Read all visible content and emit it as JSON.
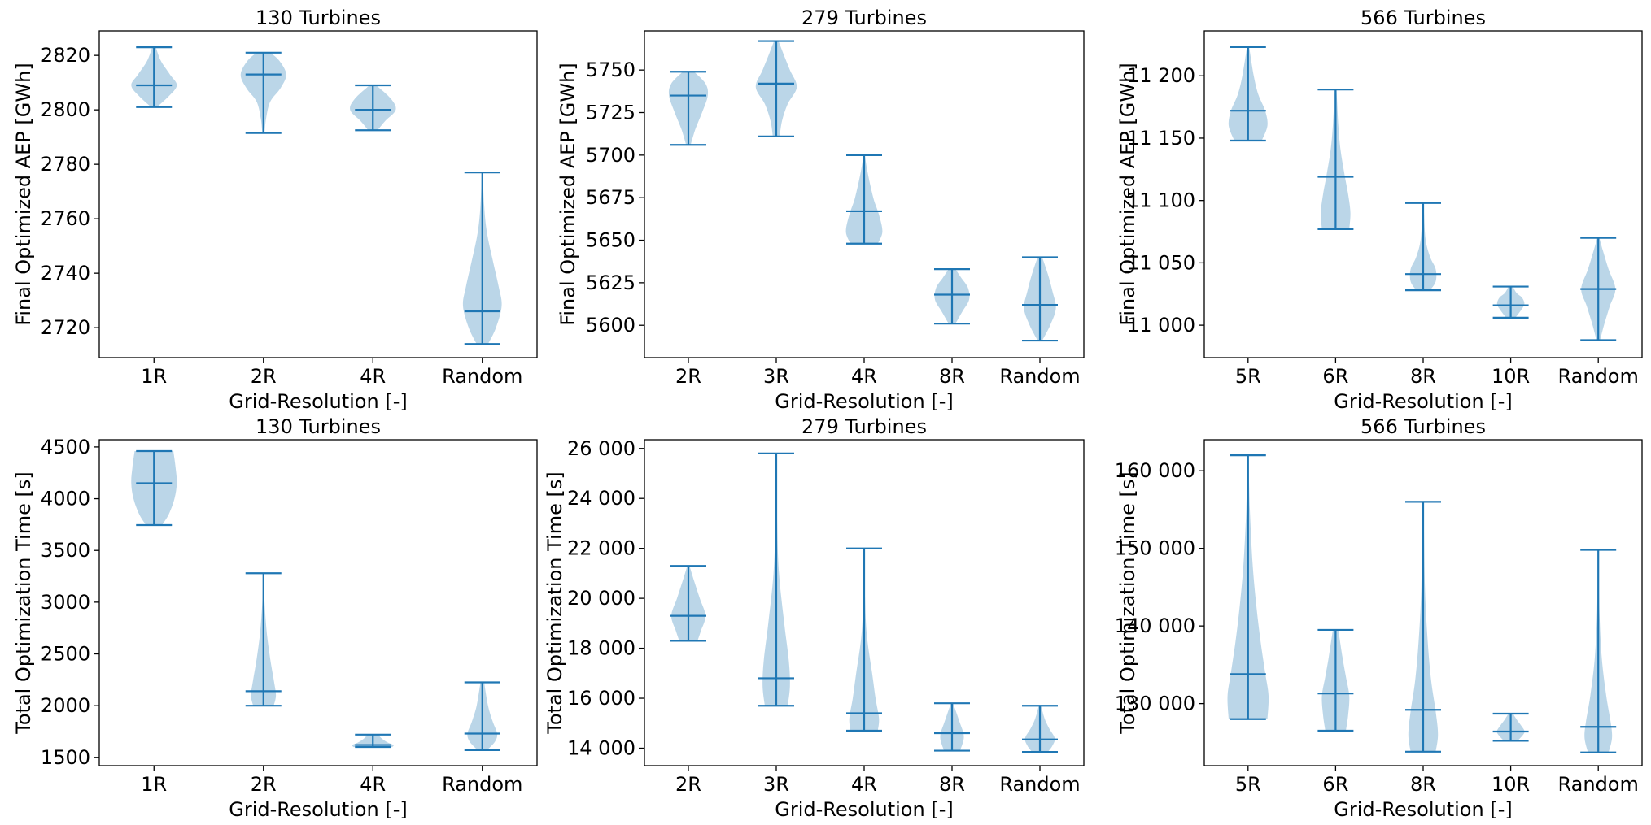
{
  "chart_data": [
    {
      "type": "violin",
      "title": "130 Turbines",
      "xlabel": "Grid-Resolution [-]",
      "ylabel": "Final Optimized AEP [GWh]",
      "categories": [
        "1R",
        "2R",
        "4R",
        "Random"
      ],
      "ylim": [
        2709,
        2829
      ],
      "yticks": [
        2720,
        2740,
        2760,
        2780,
        2800,
        2820
      ],
      "ytick_labels": [
        "2720",
        "2740",
        "2760",
        "2780",
        "2800",
        "2820"
      ],
      "violins": [
        {
          "min": 2801,
          "max": 2823,
          "median": 2809,
          "profile": [
            [
              2801,
              0.12
            ],
            [
              2805,
              0.65
            ],
            [
              2809,
              1.0
            ],
            [
              2813,
              0.7
            ],
            [
              2818,
              0.3
            ],
            [
              2823,
              0.08
            ]
          ]
        },
        {
          "min": 2791.5,
          "max": 2821,
          "median": 2813,
          "profile": [
            [
              2791.5,
              0.05
            ],
            [
              2797,
              0.12
            ],
            [
              2803,
              0.3
            ],
            [
              2808,
              0.75
            ],
            [
              2813,
              1.0
            ],
            [
              2818,
              0.7
            ],
            [
              2821,
              0.3
            ]
          ]
        },
        {
          "min": 2792.5,
          "max": 2809,
          "median": 2800,
          "profile": [
            [
              2792.5,
              0.2
            ],
            [
              2796,
              0.55
            ],
            [
              2800,
              1.0
            ],
            [
              2804,
              0.8
            ],
            [
              2809,
              0.15
            ]
          ]
        },
        {
          "min": 2714,
          "max": 2777,
          "median": 2726,
          "profile": [
            [
              2714,
              0.25
            ],
            [
              2720,
              0.6
            ],
            [
              2728,
              0.85
            ],
            [
              2735,
              0.72
            ],
            [
              2745,
              0.45
            ],
            [
              2755,
              0.2
            ],
            [
              2765,
              0.08
            ],
            [
              2777,
              0.02
            ]
          ]
        }
      ]
    },
    {
      "type": "violin",
      "title": "279 Turbines",
      "xlabel": "Grid-Resolution [-]",
      "ylabel": "Final Optimized AEP [GWh]",
      "categories": [
        "2R",
        "3R",
        "4R",
        "8R",
        "Random"
      ],
      "ylim": [
        5581,
        5773
      ],
      "yticks": [
        5600,
        5625,
        5650,
        5675,
        5700,
        5725,
        5750
      ],
      "ytick_labels": [
        "5600",
        "5625",
        "5650",
        "5675",
        "5700",
        "5725",
        "5750"
      ],
      "violins": [
        {
          "min": 5706,
          "max": 5749,
          "median": 5735,
          "profile": [
            [
              5706,
              0.1
            ],
            [
              5715,
              0.3
            ],
            [
              5725,
              0.6
            ],
            [
              5735,
              0.85
            ],
            [
              5742,
              0.75
            ],
            [
              5749,
              0.25
            ]
          ]
        },
        {
          "min": 5711,
          "max": 5767,
          "median": 5742,
          "profile": [
            [
              5711,
              0.15
            ],
            [
              5720,
              0.25
            ],
            [
              5730,
              0.5
            ],
            [
              5740,
              0.9
            ],
            [
              5750,
              0.6
            ],
            [
              5760,
              0.3
            ],
            [
              5767,
              0.1
            ]
          ]
        },
        {
          "min": 5648,
          "max": 5700,
          "median": 5667,
          "profile": [
            [
              5648,
              0.6
            ],
            [
              5655,
              0.8
            ],
            [
              5665,
              0.65
            ],
            [
              5675,
              0.4
            ],
            [
              5690,
              0.15
            ],
            [
              5700,
              0.03
            ]
          ]
        },
        {
          "min": 5601,
          "max": 5633,
          "median": 5618,
          "profile": [
            [
              5601,
              0.15
            ],
            [
              5608,
              0.45
            ],
            [
              5615,
              0.75
            ],
            [
              5622,
              0.7
            ],
            [
              5628,
              0.4
            ],
            [
              5633,
              0.15
            ]
          ]
        },
        {
          "min": 5591,
          "max": 5640,
          "median": 5612,
          "profile": [
            [
              5591,
              0.1
            ],
            [
              5600,
              0.45
            ],
            [
              5610,
              0.7
            ],
            [
              5620,
              0.55
            ],
            [
              5630,
              0.35
            ],
            [
              5640,
              0.1
            ]
          ]
        }
      ]
    },
    {
      "type": "violin",
      "title": "566 Turbines",
      "xlabel": "Grid-Resolution [-]",
      "ylabel": "Final Optimized AEP [GWh]",
      "categories": [
        "5R",
        "6R",
        "8R",
        "10R",
        "Random"
      ],
      "ylim": [
        10974,
        11236
      ],
      "yticks": [
        11000,
        11050,
        11100,
        11150,
        11200
      ],
      "ytick_labels": [
        "11 000",
        "11 050",
        "11 100",
        "11 150",
        "11 200"
      ],
      "violins": [
        {
          "min": 11148,
          "max": 11223,
          "median": 11172,
          "profile": [
            [
              11148,
              0.6
            ],
            [
              11160,
              0.85
            ],
            [
              11172,
              0.75
            ],
            [
              11185,
              0.45
            ],
            [
              11200,
              0.25
            ],
            [
              11223,
              0.05
            ]
          ]
        },
        {
          "min": 11077,
          "max": 11189,
          "median": 11119,
          "profile": [
            [
              11077,
              0.6
            ],
            [
              11090,
              0.65
            ],
            [
              11105,
              0.55
            ],
            [
              11120,
              0.4
            ],
            [
              11140,
              0.22
            ],
            [
              11160,
              0.12
            ],
            [
              11189,
              0.04
            ]
          ]
        },
        {
          "min": 11028,
          "max": 11098,
          "median": 11041,
          "profile": [
            [
              11028,
              0.3
            ],
            [
              11035,
              0.55
            ],
            [
              11045,
              0.55
            ],
            [
              11055,
              0.3
            ],
            [
              11070,
              0.1
            ],
            [
              11098,
              0.02
            ]
          ]
        },
        {
          "min": 11006,
          "max": 11031,
          "median": 11016,
          "profile": [
            [
              11006,
              0.2
            ],
            [
              11012,
              0.45
            ],
            [
              11017,
              0.6
            ],
            [
              11022,
              0.5
            ],
            [
              11026,
              0.25
            ],
            [
              11031,
              0.1
            ]
          ]
        },
        {
          "min": 10988,
          "max": 11070,
          "median": 11029,
          "profile": [
            [
              10988,
              0.08
            ],
            [
              11000,
              0.25
            ],
            [
              11015,
              0.5
            ],
            [
              11029,
              0.75
            ],
            [
              11045,
              0.45
            ],
            [
              11060,
              0.2
            ],
            [
              11070,
              0.05
            ]
          ]
        }
      ]
    },
    {
      "type": "violin",
      "title": "130 Turbines",
      "xlabel": "Grid-Resolution [-]",
      "ylabel": "Total Optimization Time [s]",
      "categories": [
        "1R",
        "2R",
        "4R",
        "Random"
      ],
      "ylim": [
        1420,
        4570
      ],
      "yticks": [
        1500,
        2000,
        2500,
        3000,
        3500,
        4000,
        4500
      ],
      "ytick_labels": [
        "1500",
        "2000",
        "2500",
        "3000",
        "3500",
        "4000",
        "4500"
      ],
      "violins": [
        {
          "min": 3745,
          "max": 4460,
          "median": 4150,
          "profile": [
            [
              3745,
              0.35
            ],
            [
              3850,
              0.65
            ],
            [
              4000,
              0.9
            ],
            [
              4150,
              1.0
            ],
            [
              4300,
              0.95
            ],
            [
              4460,
              0.85
            ]
          ]
        },
        {
          "min": 2000,
          "max": 3280,
          "median": 2140,
          "profile": [
            [
              2000,
              0.45
            ],
            [
              2100,
              0.55
            ],
            [
              2250,
              0.45
            ],
            [
              2450,
              0.3
            ],
            [
              2700,
              0.15
            ],
            [
              3000,
              0.05
            ],
            [
              3280,
              0.02
            ]
          ]
        },
        {
          "min": 1600,
          "max": 1720,
          "median": 1620,
          "profile": [
            [
              1600,
              0.85
            ],
            [
              1620,
              0.9
            ],
            [
              1650,
              0.6
            ],
            [
              1690,
              0.35
            ],
            [
              1720,
              0.25
            ]
          ]
        },
        {
          "min": 1570,
          "max": 2225,
          "median": 1730,
          "profile": [
            [
              1570,
              0.2
            ],
            [
              1650,
              0.55
            ],
            [
              1730,
              0.65
            ],
            [
              1850,
              0.45
            ],
            [
              2000,
              0.25
            ],
            [
              2225,
              0.08
            ]
          ]
        }
      ]
    },
    {
      "type": "violin",
      "title": "279 Turbines",
      "xlabel": "Grid-Resolution [-]",
      "ylabel": "Total Optimization Time [s]",
      "categories": [
        "2R",
        "3R",
        "4R",
        "8R",
        "Random"
      ],
      "ylim": [
        13300,
        26350
      ],
      "yticks": [
        14000,
        16000,
        18000,
        20000,
        22000,
        24000,
        26000
      ],
      "ytick_labels": [
        "14 000",
        "16 000",
        "18 000",
        "20 000",
        "22 000",
        "24 000",
        "26 000"
      ],
      "violins": [
        {
          "min": 18300,
          "max": 21300,
          "median": 19300,
          "profile": [
            [
              18300,
              0.4
            ],
            [
              18700,
              0.55
            ],
            [
              19300,
              0.75
            ],
            [
              20000,
              0.5
            ],
            [
              20700,
              0.25
            ],
            [
              21300,
              0.05
            ]
          ]
        },
        {
          "min": 15700,
          "max": 25800,
          "median": 16800,
          "profile": [
            [
              15700,
              0.5
            ],
            [
              16500,
              0.6
            ],
            [
              17500,
              0.55
            ],
            [
              19000,
              0.35
            ],
            [
              21000,
              0.12
            ],
            [
              23000,
              0.04
            ],
            [
              25800,
              0.01
            ]
          ]
        },
        {
          "min": 14700,
          "max": 22000,
          "median": 15400,
          "profile": [
            [
              14700,
              0.6
            ],
            [
              15200,
              0.65
            ],
            [
              16000,
              0.5
            ],
            [
              17000,
              0.35
            ],
            [
              18500,
              0.12
            ],
            [
              20000,
              0.04
            ],
            [
              22000,
              0.01
            ]
          ]
        },
        {
          "min": 13900,
          "max": 15800,
          "median": 14600,
          "profile": [
            [
              13900,
              0.35
            ],
            [
              14300,
              0.5
            ],
            [
              14600,
              0.5
            ],
            [
              15000,
              0.35
            ],
            [
              15400,
              0.2
            ],
            [
              15800,
              0.05
            ]
          ]
        },
        {
          "min": 13850,
          "max": 15700,
          "median": 14350,
          "profile": [
            [
              13850,
              0.35
            ],
            [
              14100,
              0.55
            ],
            [
              14400,
              0.65
            ],
            [
              14800,
              0.4
            ],
            [
              15200,
              0.2
            ],
            [
              15700,
              0.05
            ]
          ]
        }
      ]
    },
    {
      "type": "violin",
      "title": "566 Turbines",
      "xlabel": "Grid-Resolution [-]",
      "ylabel": "Total Optimization Time [s]",
      "categories": [
        "5R",
        "6R",
        "8R",
        "10R",
        "Random"
      ],
      "ylim": [
        122000,
        164000
      ],
      "yticks": [
        130000,
        140000,
        150000,
        160000
      ],
      "ytick_labels": [
        "130 000",
        "140 000",
        "150 000",
        "160 000"
      ],
      "violins": [
        {
          "min": 128000,
          "max": 162000,
          "median": 133800,
          "profile": [
            [
              128000,
              0.85
            ],
            [
              131000,
              0.9
            ],
            [
              134000,
              0.75
            ],
            [
              138000,
              0.55
            ],
            [
              143000,
              0.35
            ],
            [
              148000,
              0.2
            ],
            [
              155000,
              0.08
            ],
            [
              162000,
              0.02
            ]
          ]
        },
        {
          "min": 126500,
          "max": 139500,
          "median": 131300,
          "profile": [
            [
              126500,
              0.45
            ],
            [
              128500,
              0.55
            ],
            [
              131000,
              0.6
            ],
            [
              133500,
              0.45
            ],
            [
              136000,
              0.3
            ],
            [
              139500,
              0.12
            ]
          ]
        },
        {
          "min": 123800,
          "max": 156000,
          "median": 129200,
          "profile": [
            [
              123800,
              0.55
            ],
            [
              126000,
              0.65
            ],
            [
              129000,
              0.55
            ],
            [
              133000,
              0.35
            ],
            [
              138000,
              0.2
            ],
            [
              145000,
              0.08
            ],
            [
              156000,
              0.02
            ]
          ]
        },
        {
          "min": 125200,
          "max": 128700,
          "median": 126400,
          "profile": [
            [
              125200,
              0.3
            ],
            [
              126000,
              0.55
            ],
            [
              126500,
              0.6
            ],
            [
              127200,
              0.45
            ],
            [
              128000,
              0.25
            ],
            [
              128700,
              0.1
            ]
          ]
        },
        {
          "min": 123700,
          "max": 149800,
          "median": 127000,
          "profile": [
            [
              123700,
              0.45
            ],
            [
              125500,
              0.6
            ],
            [
              127500,
              0.55
            ],
            [
              131000,
              0.35
            ],
            [
              136000,
              0.15
            ],
            [
              142000,
              0.05
            ],
            [
              149800,
              0.01
            ]
          ]
        }
      ]
    }
  ]
}
